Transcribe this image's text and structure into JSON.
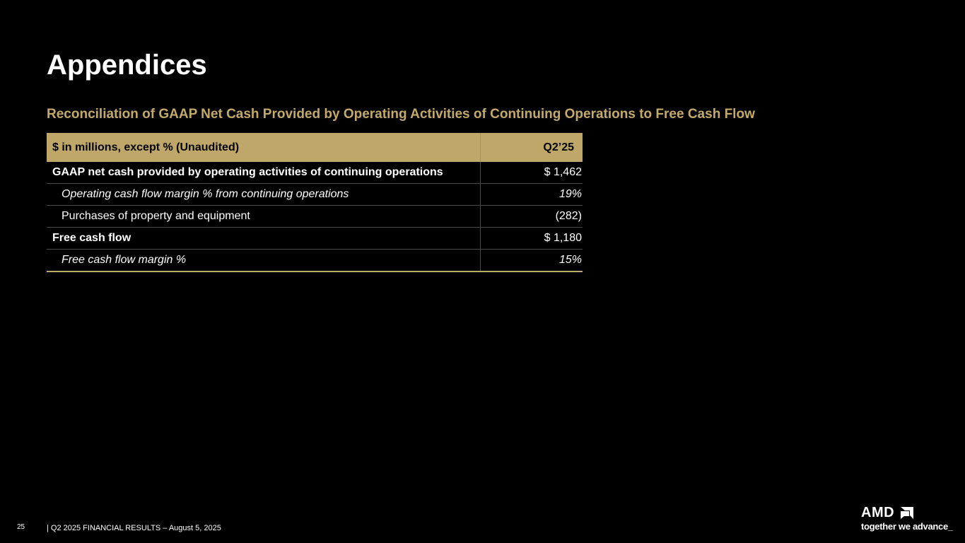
{
  "title": "Appendices",
  "subtitle": "Reconciliation of GAAP Net Cash Provided by Operating Activities of Continuing Operations to Free Cash Flow",
  "table": {
    "header": {
      "label": "$ in millions, except % (Unaudited)",
      "value": "Q2’25"
    },
    "rows": [
      {
        "label": "GAAP net cash provided by operating activities of continuing operations",
        "value": "$ 1,462"
      },
      {
        "label": "Operating cash flow margin % from continuing operations",
        "value": "19%"
      },
      {
        "label": "Purchases of property and equipment",
        "value": "(282)"
      },
      {
        "label": "Free cash flow",
        "value": "$ 1,180"
      },
      {
        "label": "Free cash flow margin %",
        "value": "15%"
      }
    ]
  },
  "footer": {
    "page_number": "25",
    "text": "|   Q2 2025 FINANCIAL RESULTS – August 5, 2025"
  },
  "logo": {
    "wordmark": "AMD",
    "tagline": "together we advance_"
  },
  "colors": {
    "background": "#000000",
    "accent_gold": "#bfa769",
    "text": "#ffffff"
  }
}
